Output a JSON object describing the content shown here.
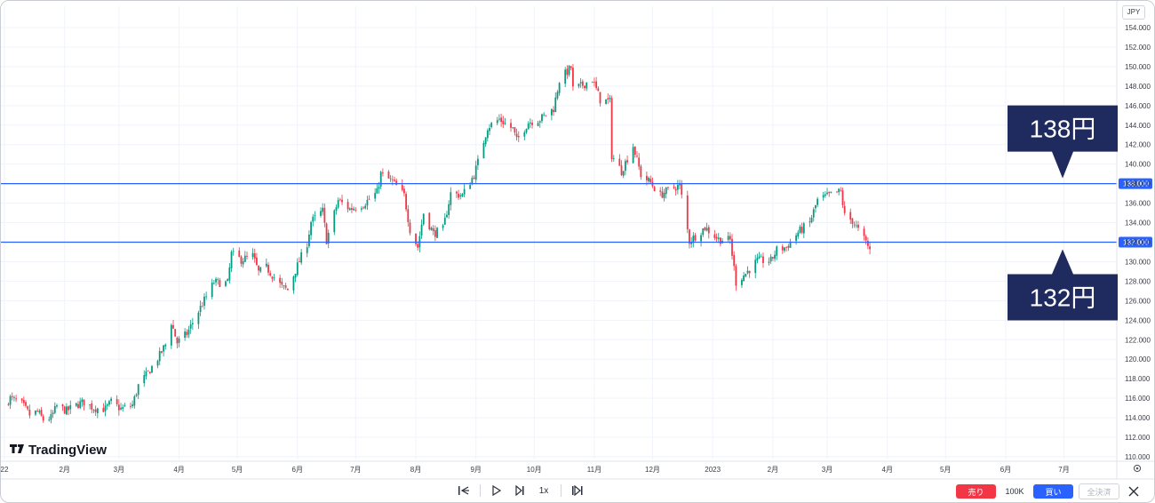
{
  "currency_label": "JPY",
  "logo_text": "TradingView",
  "chart_data": {
    "type": "candlestick",
    "ylim": [
      110,
      155
    ],
    "y_ticks": [
      110,
      112,
      114,
      116,
      118,
      120,
      122,
      124,
      126,
      128,
      130,
      132,
      134,
      136,
      138,
      140,
      142,
      144,
      146,
      148,
      150,
      152,
      154
    ],
    "y_tick_labels": [
      "110.000",
      "112.000",
      "114.000",
      "116.000",
      "118.000",
      "120.000",
      "122.000",
      "124.000",
      "126.000",
      "128.000",
      "130.000",
      "132.000",
      "134.000",
      "136.000",
      "138.000",
      "140.000",
      "142.000",
      "144.000",
      "146.000",
      "148.000",
      "150.000",
      "152.000",
      "154.000"
    ],
    "x_start": "2022-01-01",
    "x_end": "2023-07-31",
    "x_ticks": [
      {
        "date": "2022-01-01",
        "label": "22"
      },
      {
        "date": "2022-02-01",
        "label": "2月"
      },
      {
        "date": "2022-03-01",
        "label": "3月"
      },
      {
        "date": "2022-04-01",
        "label": "4月"
      },
      {
        "date": "2022-05-01",
        "label": "5月"
      },
      {
        "date": "2022-06-01",
        "label": "6月"
      },
      {
        "date": "2022-07-01",
        "label": "7月"
      },
      {
        "date": "2022-08-01",
        "label": "8月"
      },
      {
        "date": "2022-09-01",
        "label": "9月"
      },
      {
        "date": "2022-10-01",
        "label": "10月"
      },
      {
        "date": "2022-11-01",
        "label": "11月"
      },
      {
        "date": "2022-12-01",
        "label": "12月"
      },
      {
        "date": "2023-01-01",
        "label": "2023"
      },
      {
        "date": "2023-02-01",
        "label": "2月"
      },
      {
        "date": "2023-03-01",
        "label": "3月"
      },
      {
        "date": "2023-04-01",
        "label": "4月"
      },
      {
        "date": "2023-05-01",
        "label": "5月"
      },
      {
        "date": "2023-06-01",
        "label": "6月"
      },
      {
        "date": "2023-07-01",
        "label": "7月"
      }
    ],
    "close_path": [
      [
        "2022-01-01",
        115.3
      ],
      [
        "2022-01-04",
        116.0
      ],
      [
        "2022-01-10",
        115.4
      ],
      [
        "2022-01-14",
        114.3
      ],
      [
        "2022-01-18",
        114.6
      ],
      [
        "2022-01-21",
        113.8
      ],
      [
        "2022-01-25",
        114.0
      ],
      [
        "2022-01-28",
        115.2
      ],
      [
        "2022-02-02",
        114.7
      ],
      [
        "2022-02-08",
        115.4
      ],
      [
        "2022-02-11",
        115.6
      ],
      [
        "2022-02-16",
        115.0
      ],
      [
        "2022-02-22",
        114.9
      ],
      [
        "2022-02-25",
        115.6
      ],
      [
        "2022-03-02",
        114.9
      ],
      [
        "2022-03-08",
        115.3
      ],
      [
        "2022-03-11",
        117.3
      ],
      [
        "2022-03-16",
        118.6
      ],
      [
        "2022-03-22",
        120.4
      ],
      [
        "2022-03-25",
        121.5
      ],
      [
        "2022-03-28",
        123.8
      ],
      [
        "2022-03-31",
        121.7
      ],
      [
        "2022-04-05",
        122.6
      ],
      [
        "2022-04-12",
        125.3
      ],
      [
        "2022-04-19",
        127.9
      ],
      [
        "2022-04-26",
        127.8
      ],
      [
        "2022-04-28",
        130.8
      ],
      [
        "2022-05-03",
        130.2
      ],
      [
        "2022-05-09",
        130.6
      ],
      [
        "2022-05-12",
        128.9
      ],
      [
        "2022-05-16",
        129.4
      ],
      [
        "2022-05-24",
        127.4
      ],
      [
        "2022-05-27",
        127.1
      ],
      [
        "2022-06-01",
        129.6
      ],
      [
        "2022-06-06",
        131.9
      ],
      [
        "2022-06-08",
        134.1
      ],
      [
        "2022-06-14",
        135.2
      ],
      [
        "2022-06-16",
        132.2
      ],
      [
        "2022-06-22",
        136.3
      ],
      [
        "2022-06-28",
        135.4
      ],
      [
        "2022-07-05",
        135.9
      ],
      [
        "2022-07-12",
        137.1
      ],
      [
        "2022-07-14",
        139.0
      ],
      [
        "2022-07-20",
        138.2
      ],
      [
        "2022-07-26",
        136.8
      ],
      [
        "2022-07-29",
        133.3
      ],
      [
        "2022-08-02",
        131.5
      ],
      [
        "2022-08-05",
        135.0
      ],
      [
        "2022-08-10",
        132.9
      ],
      [
        "2022-08-15",
        133.3
      ],
      [
        "2022-08-19",
        137.0
      ],
      [
        "2022-08-25",
        136.8
      ],
      [
        "2022-08-31",
        138.9
      ],
      [
        "2022-09-02",
        140.2
      ],
      [
        "2022-09-07",
        143.8
      ],
      [
        "2022-09-13",
        144.6
      ],
      [
        "2022-09-20",
        143.6
      ],
      [
        "2022-09-22",
        142.4
      ],
      [
        "2022-09-28",
        144.3
      ],
      [
        "2022-10-04",
        144.6
      ],
      [
        "2022-10-11",
        145.7
      ],
      [
        "2022-10-14",
        148.6
      ],
      [
        "2022-10-20",
        149.9
      ],
      [
        "2022-10-21",
        147.7
      ],
      [
        "2022-10-25",
        148.0
      ],
      [
        "2022-10-31",
        148.7
      ],
      [
        "2022-11-04",
        146.6
      ],
      [
        "2022-11-09",
        146.4
      ],
      [
        "2022-11-10",
        140.9
      ],
      [
        "2022-11-15",
        139.3
      ],
      [
        "2022-11-21",
        141.9
      ],
      [
        "2022-11-25",
        138.9
      ],
      [
        "2022-11-30",
        138.1
      ],
      [
        "2022-12-05",
        136.8
      ],
      [
        "2022-12-07",
        137.1
      ],
      [
        "2022-12-12",
        137.6
      ],
      [
        "2022-12-15",
        137.8
      ],
      [
        "2022-12-20",
        132.1
      ],
      [
        "2022-12-28",
        133.5
      ],
      [
        "2023-01-04",
        132.3
      ],
      [
        "2023-01-10",
        132.2
      ],
      [
        "2023-01-13",
        127.9
      ],
      [
        "2023-01-18",
        128.8
      ],
      [
        "2023-01-24",
        130.1
      ],
      [
        "2023-01-31",
        130.1
      ],
      [
        "2023-02-03",
        131.2
      ],
      [
        "2023-02-08",
        131.5
      ],
      [
        "2023-02-14",
        133.0
      ],
      [
        "2023-02-20",
        134.0
      ],
      [
        "2023-02-24",
        136.3
      ],
      [
        "2023-03-02",
        136.8
      ],
      [
        "2023-03-08",
        137.2
      ],
      [
        "2023-03-10",
        134.7
      ],
      [
        "2023-03-14",
        134.2
      ],
      [
        "2023-03-17",
        133.2
      ],
      [
        "2023-03-21",
        132.0
      ],
      [
        "2023-03-23",
        131.2
      ]
    ],
    "horizontal_lines": [
      {
        "value": 138,
        "price_label": "138.000",
        "callout": "138円",
        "callout_position": "above"
      },
      {
        "value": 132,
        "price_label": "132.000",
        "callout": "132円",
        "callout_position": "below"
      }
    ],
    "colors": {
      "up": "#089981",
      "down": "#f23645",
      "hline": "#2962ff",
      "callout_bg": "#1f2a5e",
      "grid": "#f0f3fa"
    }
  },
  "playback": {
    "speed_label": "1x"
  },
  "trade": {
    "sell_label": "売り",
    "qty_label": "100K",
    "buy_label": "買い",
    "close_all_label": "全決済"
  }
}
